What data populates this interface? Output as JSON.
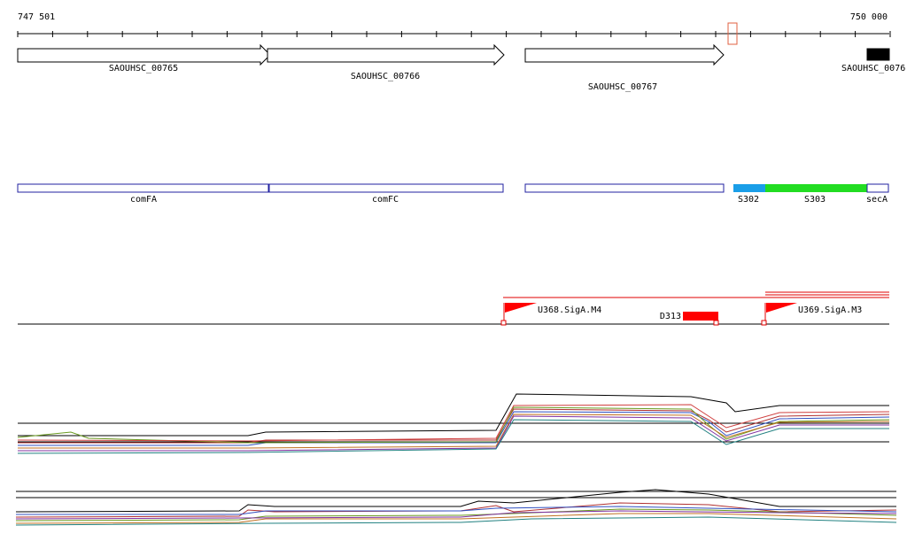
{
  "ruler": {
    "start": "747 501",
    "end": "750 000"
  },
  "genes": [
    {
      "label": "SAOUHSC_00765"
    },
    {
      "label": "SAOUHSC_00766"
    },
    {
      "label": "SAOUHSC_00767"
    },
    {
      "label": "SAOUHSC_0076"
    }
  ],
  "features": [
    {
      "label": "comFA"
    },
    {
      "label": "comFC"
    },
    {
      "label": "S302"
    },
    {
      "label": "S303"
    },
    {
      "label": "secA"
    }
  ],
  "promoters": [
    {
      "label": "U368.SigA.M4"
    },
    {
      "label": "D313"
    },
    {
      "label": "U369.SigA.M3"
    }
  ]
}
